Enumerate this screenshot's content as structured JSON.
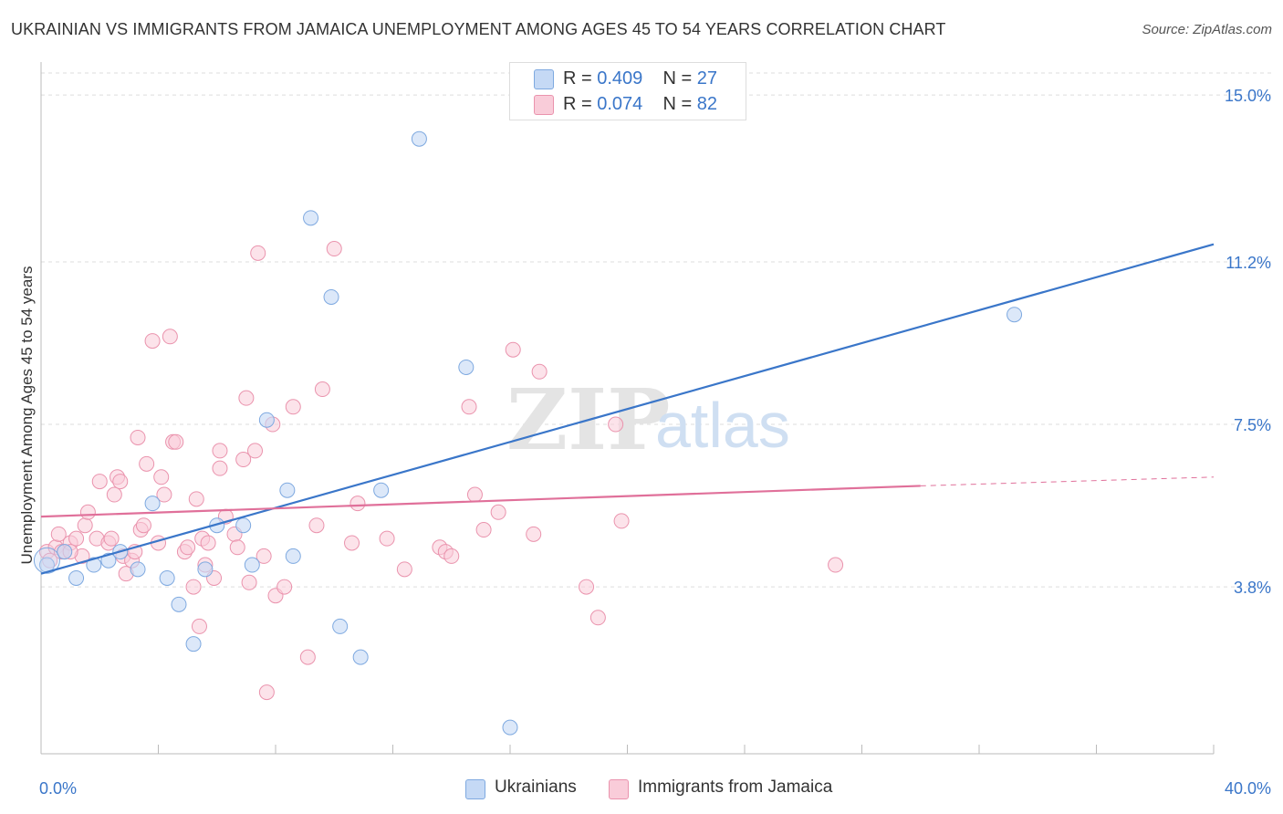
{
  "header": {
    "title": "UKRAINIAN VS IMMIGRANTS FROM JAMAICA UNEMPLOYMENT AMONG AGES 45 TO 54 YEARS CORRELATION CHART",
    "source": "Source: ZipAtlas.com"
  },
  "watermark": {
    "zip": "ZIP",
    "atlas": "atlas"
  },
  "legend_top": {
    "rows": [
      {
        "r_label": "R =",
        "r_value": "0.409",
        "n_label": "N =",
        "n_value": "27"
      },
      {
        "r_label": "R =",
        "r_value": "0.074",
        "n_label": "N =",
        "n_value": "82"
      }
    ]
  },
  "legend_bottom": {
    "items": [
      "Ukrainians",
      "Immigrants from Jamaica"
    ]
  },
  "colors": {
    "blue_fill": "#c5d9f5",
    "blue_stroke": "#7ea9e0",
    "blue_line": "#3a76c9",
    "pink_fill": "#f9ccd9",
    "pink_stroke": "#ea93ad",
    "pink_line": "#e0709a",
    "tick_label": "#3a76c9",
    "grid": "#dddddd"
  },
  "chart_data": {
    "type": "scatter",
    "title": "UKRAINIAN VS IMMIGRANTS FROM JAMAICA UNEMPLOYMENT AMONG AGES 45 TO 54 YEARS CORRELATION CHART",
    "xlabel": "",
    "ylabel": "Unemployment Among Ages 45 to 54 years",
    "xlim": [
      0,
      40
    ],
    "ylim": [
      0,
      15.5
    ],
    "x_tick_labels": [
      "0.0%",
      "40.0%"
    ],
    "y_ticks": [
      3.8,
      7.5,
      11.2,
      15.0
    ],
    "y_tick_labels": [
      "3.8%",
      "7.5%",
      "11.2%",
      "15.0%"
    ],
    "grid": "horizontal dashed",
    "legend": "top-center",
    "series": [
      {
        "name": "Ukrainians",
        "R": 0.409,
        "N": 27,
        "trend": {
          "x": [
            0,
            40
          ],
          "y": [
            4.1,
            11.6
          ]
        },
        "points": [
          [
            0.2,
            4.3
          ],
          [
            0.8,
            4.6
          ],
          [
            1.2,
            4.0
          ],
          [
            1.8,
            4.3
          ],
          [
            2.3,
            4.4
          ],
          [
            2.7,
            4.6
          ],
          [
            3.3,
            4.2
          ],
          [
            3.8,
            5.7
          ],
          [
            4.3,
            4.0
          ],
          [
            4.7,
            3.4
          ],
          [
            5.2,
            2.5
          ],
          [
            5.6,
            4.2
          ],
          [
            6.0,
            5.2
          ],
          [
            6.9,
            5.2
          ],
          [
            7.2,
            4.3
          ],
          [
            7.7,
            7.6
          ],
          [
            8.4,
            6.0
          ],
          [
            8.6,
            4.5
          ],
          [
            9.2,
            12.2
          ],
          [
            9.9,
            10.4
          ],
          [
            10.2,
            2.9
          ],
          [
            10.9,
            2.2
          ],
          [
            11.6,
            6.0
          ],
          [
            12.9,
            14.0
          ],
          [
            14.5,
            8.8
          ],
          [
            16.0,
            0.6
          ],
          [
            33.2,
            10.0
          ]
        ]
      },
      {
        "name": "Immigrants from Jamaica",
        "R": 0.074,
        "N": 82,
        "trend": {
          "x": [
            0,
            30
          ],
          "y": [
            5.4,
            6.1
          ]
        },
        "trend_dashed": {
          "x": [
            30,
            40
          ],
          "y": [
            6.1,
            6.3
          ]
        },
        "points": [
          [
            0.2,
            4.6
          ],
          [
            0.3,
            4.4
          ],
          [
            0.5,
            4.7
          ],
          [
            0.6,
            5.0
          ],
          [
            0.7,
            4.6
          ],
          [
            0.8,
            4.6
          ],
          [
            1.0,
            4.8
          ],
          [
            1.2,
            4.9
          ],
          [
            1.4,
            4.5
          ],
          [
            1.5,
            5.2
          ],
          [
            1.6,
            5.5
          ],
          [
            1.9,
            4.9
          ],
          [
            2.0,
            6.2
          ],
          [
            2.3,
            4.8
          ],
          [
            2.4,
            4.9
          ],
          [
            2.5,
            5.9
          ],
          [
            2.6,
            6.3
          ],
          [
            2.7,
            6.2
          ],
          [
            2.8,
            4.5
          ],
          [
            2.9,
            4.1
          ],
          [
            3.1,
            4.4
          ],
          [
            3.2,
            4.6
          ],
          [
            3.3,
            7.2
          ],
          [
            3.4,
            5.1
          ],
          [
            3.5,
            5.2
          ],
          [
            3.6,
            6.6
          ],
          [
            3.8,
            9.4
          ],
          [
            4.0,
            4.8
          ],
          [
            4.1,
            6.3
          ],
          [
            4.2,
            5.9
          ],
          [
            4.4,
            9.5
          ],
          [
            4.5,
            7.1
          ],
          [
            4.6,
            7.1
          ],
          [
            4.9,
            4.6
          ],
          [
            5.0,
            4.7
          ],
          [
            5.2,
            3.8
          ],
          [
            5.3,
            5.8
          ],
          [
            5.4,
            2.9
          ],
          [
            5.5,
            4.9
          ],
          [
            5.6,
            4.3
          ],
          [
            5.7,
            4.8
          ],
          [
            5.9,
            4.0
          ],
          [
            6.1,
            6.5
          ],
          [
            6.1,
            6.9
          ],
          [
            6.3,
            5.4
          ],
          [
            6.6,
            5.0
          ],
          [
            6.7,
            4.7
          ],
          [
            6.9,
            6.7
          ],
          [
            7.0,
            8.1
          ],
          [
            7.1,
            3.9
          ],
          [
            7.3,
            6.9
          ],
          [
            7.4,
            11.4
          ],
          [
            7.6,
            4.5
          ],
          [
            7.7,
            1.4
          ],
          [
            7.9,
            7.5
          ],
          [
            8.0,
            3.6
          ],
          [
            8.3,
            3.8
          ],
          [
            8.6,
            7.9
          ],
          [
            9.1,
            2.2
          ],
          [
            9.4,
            5.2
          ],
          [
            9.6,
            8.3
          ],
          [
            10.0,
            11.5
          ],
          [
            10.6,
            4.8
          ],
          [
            10.8,
            5.7
          ],
          [
            11.8,
            4.9
          ],
          [
            12.4,
            4.2
          ],
          [
            13.6,
            4.7
          ],
          [
            13.8,
            4.6
          ],
          [
            14.0,
            4.5
          ],
          [
            14.6,
            7.9
          ],
          [
            14.8,
            5.9
          ],
          [
            15.1,
            5.1
          ],
          [
            15.6,
            5.5
          ],
          [
            16.1,
            9.2
          ],
          [
            16.8,
            5.0
          ],
          [
            17.0,
            8.7
          ],
          [
            18.6,
            3.8
          ],
          [
            19.0,
            3.1
          ],
          [
            19.6,
            7.5
          ],
          [
            19.8,
            5.3
          ],
          [
            27.1,
            4.3
          ],
          [
            1.0,
            4.6
          ]
        ]
      }
    ]
  }
}
